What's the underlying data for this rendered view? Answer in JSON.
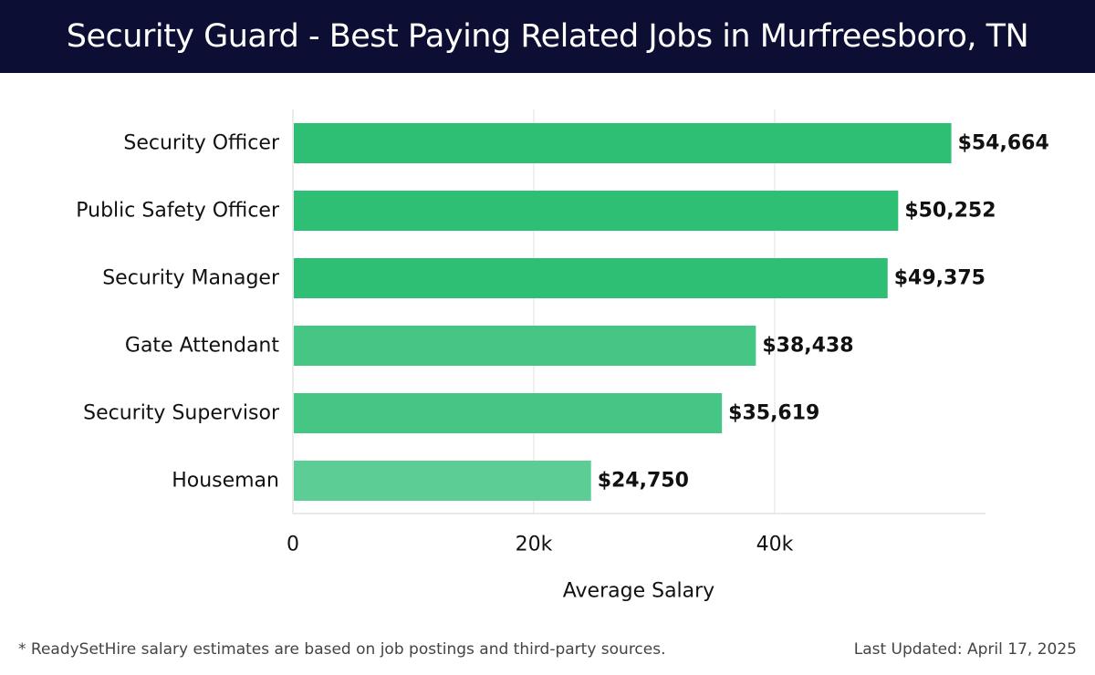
{
  "header": {
    "title": "Security Guard - Best Paying Related Jobs in Murfreesboro, TN"
  },
  "chart_data": {
    "type": "bar",
    "orientation": "horizontal",
    "title": "Security Guard - Best Paying Related Jobs in Murfreesboro, TN",
    "xlabel": "Average Salary",
    "ylabel": "",
    "categories": [
      "Security Officer",
      "Public Safety Officer",
      "Security Manager",
      "Gate Attendant",
      "Security Supervisor",
      "Houseman"
    ],
    "values": [
      54664,
      50252,
      49375,
      38438,
      35619,
      24750
    ],
    "value_labels": [
      "$54,664",
      "$50,252",
      "$49,375",
      "$38,438",
      "$35,619",
      "$24,750"
    ],
    "xlim": [
      0,
      57500
    ],
    "xticks": [
      0,
      20000,
      40000
    ],
    "xtick_labels": [
      "0",
      "20k",
      "40k"
    ],
    "grid": "vertical",
    "bar_colors": [
      "#2ebf75",
      "#2ebf75",
      "#2ebf75",
      "#45c685",
      "#45c685",
      "#5ccd95"
    ],
    "grid_color": "#e2e2e2"
  },
  "footer": {
    "note": "* ReadySetHire salary estimates are based on job postings and third-party sources.",
    "updated": "Last Updated: April 17, 2025"
  }
}
